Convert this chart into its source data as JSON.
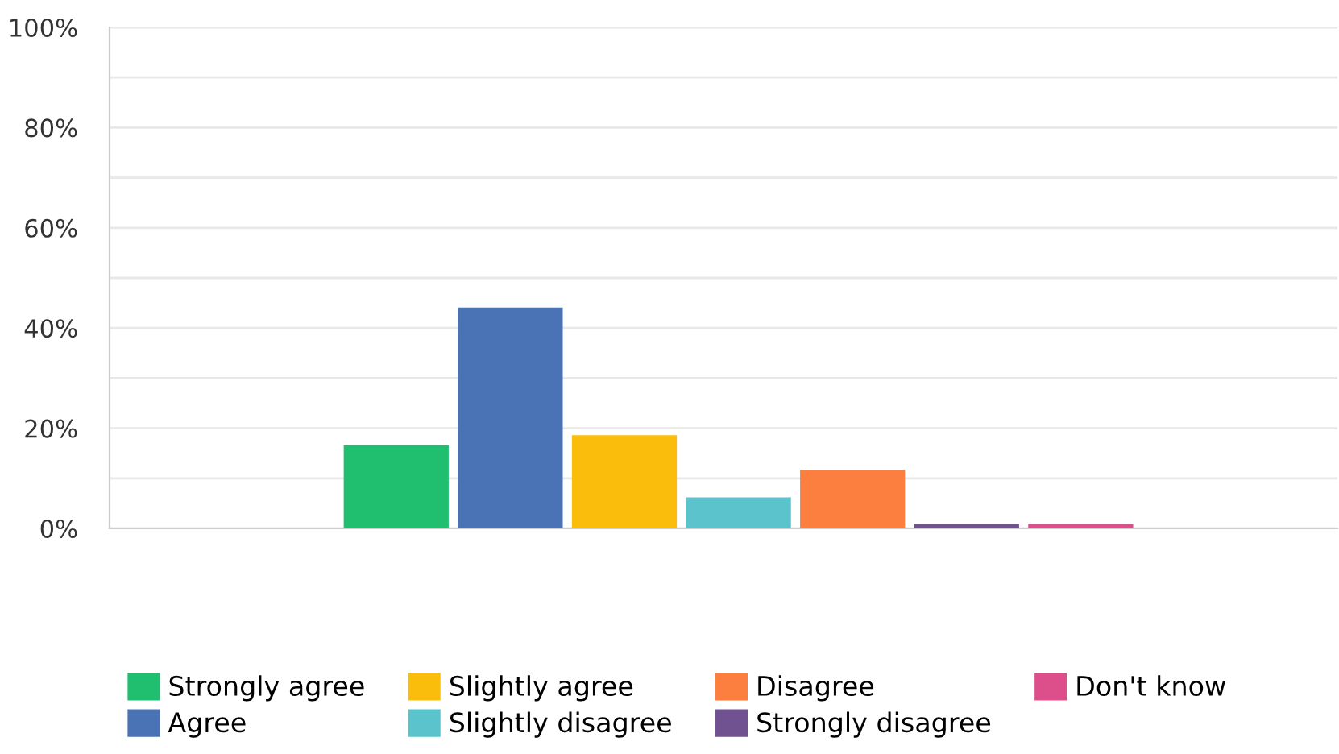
{
  "chart_data": {
    "type": "bar",
    "categories": [
      null
    ],
    "series": [
      {
        "name": "Strongly agree",
        "color": "#1fbf6f",
        "values": [
          16.6
        ]
      },
      {
        "name": "Agree",
        "color": "#4a73b5",
        "values": [
          44.1
        ]
      },
      {
        "name": "Slightly agree",
        "color": "#fbbd0b",
        "values": [
          18.6
        ]
      },
      {
        "name": "Slightly disagree",
        "color": "#5bc3cb",
        "values": [
          6.2
        ]
      },
      {
        "name": "Disagree",
        "color": "#fc7f3f",
        "values": [
          11.7
        ]
      },
      {
        "name": "Strongly disagree",
        "color": "#6f528f",
        "values": [
          0.9
        ]
      },
      {
        "name": "Don't know",
        "color": "#dd4f8b",
        "values": [
          0.9
        ]
      }
    ],
    "ylim": [
      0,
      100
    ],
    "yticks": [
      {
        "value": 0,
        "label": "0%"
      },
      {
        "value": 10,
        "label": null
      },
      {
        "value": 20,
        "label": "20%"
      },
      {
        "value": 30,
        "label": null
      },
      {
        "value": 40,
        "label": "40%"
      },
      {
        "value": 50,
        "label": null
      },
      {
        "value": 60,
        "label": "60%"
      },
      {
        "value": 70,
        "label": null
      },
      {
        "value": 80,
        "label": "80%"
      },
      {
        "value": 90,
        "label": null
      },
      {
        "value": 100,
        "label": "100%"
      }
    ],
    "grid": "y",
    "legend": "bottom",
    "tick_labels": "y"
  }
}
